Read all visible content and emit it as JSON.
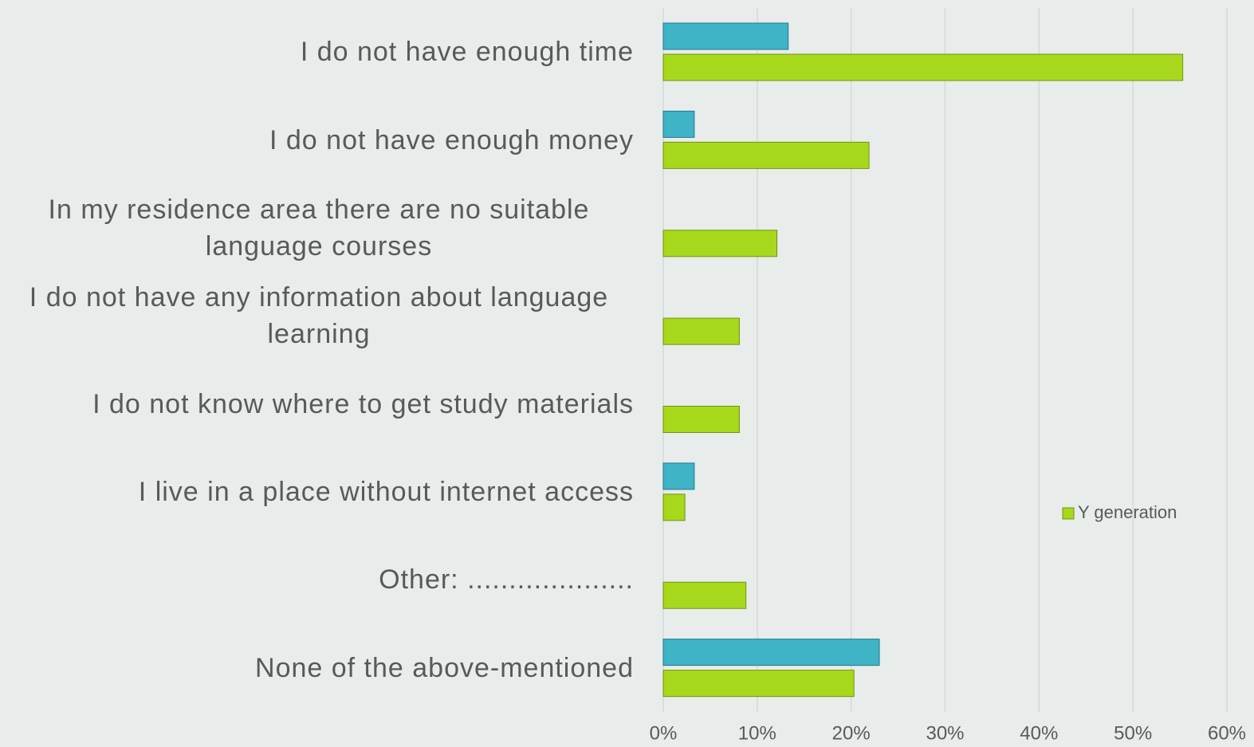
{
  "chart_data": {
    "type": "barh",
    "categories": [
      "I do not have enough time",
      "I do not have enough money",
      "In my residence area there are no  suitable language courses",
      "I do not have any information about language learning",
      "I do not know where to get study materials",
      "I live in a place without internet access",
      "Other: ....................",
      "None of the above-mentioned"
    ],
    "series": [
      {
        "color": "#3fb4c6",
        "values": [
          13.3,
          3.3,
          0,
          0,
          0,
          3.3,
          0,
          23.0
        ]
      },
      {
        "name": "Y generation",
        "color": "#a8d81c",
        "values": [
          55.3,
          21.9,
          12.1,
          8.1,
          8.1,
          2.3,
          8.8,
          20.3
        ]
      }
    ],
    "xlim": [
      0,
      60
    ],
    "xticks": [
      {
        "value": 0,
        "label": "0%"
      },
      {
        "value": 10,
        "label": "10%"
      },
      {
        "value": 20,
        "label": "20%"
      },
      {
        "value": 30,
        "label": "30%"
      },
      {
        "value": 40,
        "label": "40%"
      },
      {
        "value": 50,
        "label": "50%"
      },
      {
        "value": 60,
        "label": "60%"
      }
    ],
    "grid": true,
    "legend": "right"
  }
}
